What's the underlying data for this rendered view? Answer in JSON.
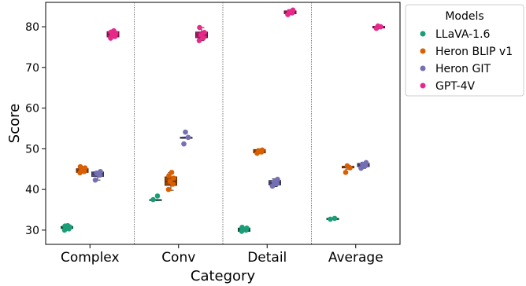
{
  "chart_data": {
    "type": "box",
    "title": "",
    "xlabel": "Category",
    "ylabel": "Score",
    "ylim": [
      26.5,
      86
    ],
    "yticks": [
      30,
      40,
      50,
      60,
      70,
      80
    ],
    "categories": [
      "Complex",
      "Conv",
      "Detail",
      "Average"
    ],
    "legend": {
      "title": "Models",
      "placement": "outside-top-right"
    },
    "grid": false,
    "separators": "dotted vertical lines between categories",
    "series": [
      {
        "name": "LLaVA-1.6",
        "color": "#1b9e77",
        "boxes": [
          {
            "q1": 30.4,
            "median": 30.7,
            "q3": 30.9,
            "whisker_low": 30.3,
            "whisker_high": 31.0,
            "points": [
              30.0,
              30.3,
              30.6,
              30.8,
              31.0,
              31.1
            ]
          },
          {
            "q1": 37.3,
            "median": 37.4,
            "q3": 37.5,
            "whisker_low": 37.3,
            "whisker_high": 37.5,
            "points": [
              37.5,
              38.4
            ]
          },
          {
            "q1": 29.7,
            "median": 30.0,
            "q3": 30.5,
            "whisker_low": 29.6,
            "whisker_high": 30.6,
            "points": [
              29.7,
              30.0,
              30.2,
              30.5,
              30.7
            ]
          },
          {
            "q1": 32.6,
            "median": 32.8,
            "q3": 32.9,
            "whisker_low": 32.6,
            "whisker_high": 33.0,
            "points": [
              32.7,
              32.9
            ]
          }
        ]
      },
      {
        "name": "Heron BLIP v1",
        "color": "#d95f02",
        "boxes": [
          {
            "q1": 44.2,
            "median": 44.6,
            "q3": 45.1,
            "whisker_low": 44.0,
            "whisker_high": 45.6,
            "points": [
              44.1,
              44.4,
              44.8,
              45.3,
              45.6
            ]
          },
          {
            "q1": 41.0,
            "median": 42.0,
            "q3": 43.1,
            "whisker_low": 39.8,
            "whisker_high": 44.2,
            "points": [
              40.0,
              41.3,
              42.0,
              42.8,
              43.4,
              44.2
            ]
          },
          {
            "q1": 49.0,
            "median": 49.4,
            "q3": 49.8,
            "whisker_low": 48.8,
            "whisker_high": 50.0,
            "points": [
              48.9,
              49.2,
              49.5,
              49.7
            ]
          },
          {
            "q1": 45.3,
            "median": 45.6,
            "q3": 45.7,
            "whisker_low": 45.0,
            "whisker_high": 45.9,
            "points": [
              44.2,
              45.3,
              45.8
            ]
          }
        ]
      },
      {
        "name": "Heron GIT",
        "color": "#7570b3",
        "boxes": [
          {
            "q1": 43.2,
            "median": 43.8,
            "q3": 44.3,
            "whisker_low": 42.3,
            "whisker_high": 44.5,
            "points": [
              42.3,
              43.5,
              44.0,
              44.4
            ]
          },
          {
            "q1": 52.8,
            "median": 52.8,
            "q3": 52.8,
            "whisker_low": 52.7,
            "whisker_high": 52.9,
            "points": [
              51.2,
              52.8,
              54.1
            ]
          },
          {
            "q1": 41.1,
            "median": 41.6,
            "q3": 42.2,
            "whisker_low": 40.7,
            "whisker_high": 42.6,
            "points": [
              40.8,
              41.4,
              41.9,
              42.5
            ]
          },
          {
            "q1": 45.6,
            "median": 46.0,
            "q3": 46.4,
            "whisker_low": 45.2,
            "whisker_high": 46.7,
            "points": [
              45.2,
              45.8,
              46.2,
              46.6
            ]
          }
        ]
      },
      {
        "name": "GPT-4V",
        "color": "#e7298a",
        "boxes": [
          {
            "q1": 77.5,
            "median": 78.2,
            "q3": 78.8,
            "whisker_low": 77.2,
            "whisker_high": 79.0,
            "points": [
              77.2,
              77.6,
              78.0,
              78.4,
              78.7,
              79.0
            ]
          },
          {
            "q1": 77.3,
            "median": 78.0,
            "q3": 78.7,
            "whisker_low": 76.6,
            "whisker_high": 79.8,
            "points": [
              76.6,
              77.3,
              78.0,
              78.6,
              79.8
            ]
          },
          {
            "q1": 83.2,
            "median": 83.6,
            "q3": 83.9,
            "whisker_low": 83.0,
            "whisker_high": 84.2,
            "points": [
              83.0,
              83.4,
              83.7,
              84.1
            ]
          },
          {
            "q1": 79.7,
            "median": 79.9,
            "q3": 80.1,
            "whisker_low": 79.5,
            "whisker_high": 80.3,
            "points": [
              79.6,
              80.0,
              80.2
            ]
          }
        ]
      }
    ]
  }
}
